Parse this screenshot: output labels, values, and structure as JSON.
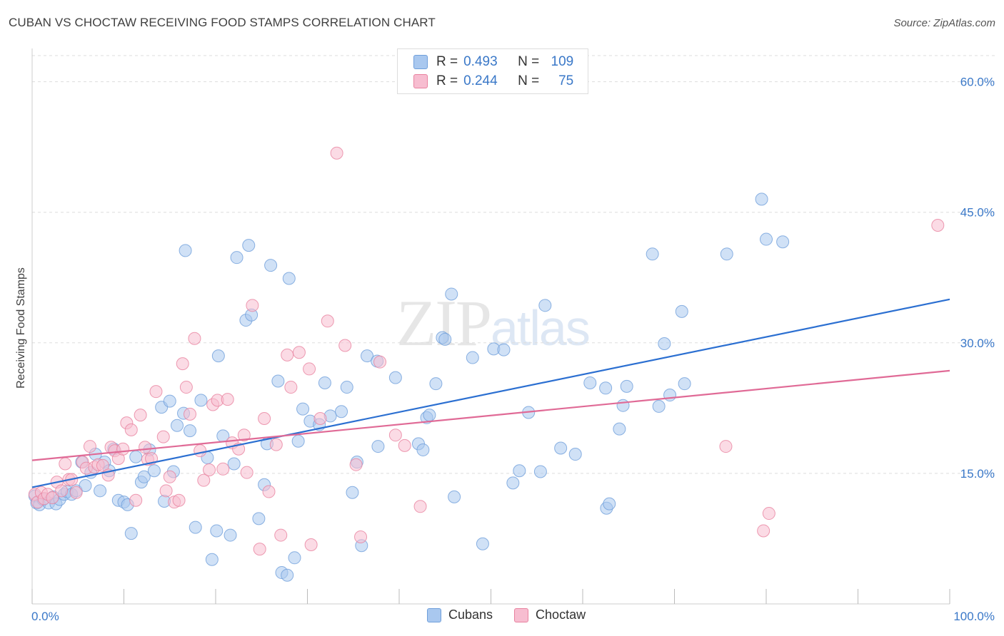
{
  "title": "CUBAN VS CHOCTAW RECEIVING FOOD STAMPS CORRELATION CHART",
  "source": "Source: ZipAtlas.com",
  "watermark": {
    "zip": "ZIP",
    "atlas": "atlas"
  },
  "legend": {
    "r_label": "R =",
    "n_label": "N =",
    "rows": [
      {
        "r": "0.493",
        "n": "109",
        "color": "#a9c8ef",
        "border": "#6f9fdb"
      },
      {
        "r": "0.244",
        "n": "75",
        "color": "#f7bdd0",
        "border": "#e8829f"
      }
    ]
  },
  "bottom_legend": [
    {
      "label": "Cubans",
      "color": "#a9c8ef",
      "border": "#6f9fdb"
    },
    {
      "label": "Choctaw",
      "color": "#f7bdd0",
      "border": "#e8829f"
    }
  ],
  "colors": {
    "cubans_fill": "#a9c8ef",
    "cubans_stroke": "#6f9fdb",
    "cubans_line": "#2b6fd1",
    "choctaw_fill": "#f7bdd0",
    "choctaw_stroke": "#e8829f",
    "choctaw_line": "#e06a96",
    "grid": "#dddddd",
    "tick_text": "#3a78c8"
  },
  "chart_data": {
    "type": "scatter",
    "title": "CUBAN VS CHOCTAW RECEIVING FOOD STAMPS CORRELATION CHART",
    "xlabel": "",
    "ylabel": "Receiving Food Stamps",
    "xlim": [
      0,
      100
    ],
    "ylim": [
      0,
      63
    ],
    "x_tick_labels": [
      "0.0%",
      "100.0%"
    ],
    "y_ticks": [
      15,
      30,
      45,
      60
    ],
    "y_tick_labels": [
      "15.0%",
      "30.0%",
      "45.0%",
      "60.0%"
    ],
    "grid": true,
    "legend_position": "top-center",
    "series": [
      {
        "name": "Cubans",
        "r": 0.493,
        "n": 109,
        "trend": {
          "x": [
            0,
            100
          ],
          "y": [
            13.4,
            35.0
          ]
        },
        "points": [
          [
            0.3,
            12.4
          ],
          [
            0.5,
            11.6
          ],
          [
            0.8,
            11.4
          ],
          [
            1.2,
            12.0
          ],
          [
            1.8,
            11.6
          ],
          [
            2.3,
            12.3
          ],
          [
            2.6,
            11.5
          ],
          [
            3.0,
            12.0
          ],
          [
            3.5,
            12.6
          ],
          [
            3.8,
            12.9
          ],
          [
            4.3,
            12.6
          ],
          [
            4.8,
            13.0
          ],
          [
            5.4,
            16.3
          ],
          [
            5.8,
            13.6
          ],
          [
            6.4,
            15.1
          ],
          [
            6.9,
            17.2
          ],
          [
            7.4,
            13.0
          ],
          [
            7.9,
            16.3
          ],
          [
            8.4,
            15.3
          ],
          [
            8.9,
            17.8
          ],
          [
            9.4,
            11.9
          ],
          [
            10.0,
            11.7
          ],
          [
            10.4,
            11.4
          ],
          [
            10.8,
            8.1
          ],
          [
            11.3,
            16.9
          ],
          [
            11.9,
            14.0
          ],
          [
            12.2,
            14.6
          ],
          [
            12.8,
            17.7
          ],
          [
            13.3,
            15.3
          ],
          [
            14.1,
            22.6
          ],
          [
            14.4,
            11.8
          ],
          [
            15.0,
            23.3
          ],
          [
            15.4,
            15.2
          ],
          [
            15.8,
            20.5
          ],
          [
            16.5,
            21.9
          ],
          [
            16.7,
            40.6
          ],
          [
            17.2,
            19.9
          ],
          [
            17.8,
            8.8
          ],
          [
            18.4,
            23.4
          ],
          [
            19.1,
            16.8
          ],
          [
            19.6,
            5.1
          ],
          [
            20.1,
            8.4
          ],
          [
            20.3,
            28.5
          ],
          [
            20.8,
            19.3
          ],
          [
            21.6,
            7.9
          ],
          [
            22.0,
            16.1
          ],
          [
            22.3,
            39.8
          ],
          [
            23.3,
            32.6
          ],
          [
            23.6,
            41.2
          ],
          [
            23.9,
            33.2
          ],
          [
            24.7,
            9.8
          ],
          [
            25.3,
            13.7
          ],
          [
            25.6,
            18.4
          ],
          [
            26.0,
            38.9
          ],
          [
            26.8,
            25.6
          ],
          [
            27.2,
            3.6
          ],
          [
            27.8,
            3.3
          ],
          [
            28.0,
            37.4
          ],
          [
            28.6,
            5.3
          ],
          [
            29.0,
            18.7
          ],
          [
            29.5,
            22.4
          ],
          [
            30.3,
            21.0
          ],
          [
            31.3,
            20.6
          ],
          [
            31.9,
            25.4
          ],
          [
            32.5,
            21.6
          ],
          [
            33.7,
            22.1
          ],
          [
            34.3,
            24.9
          ],
          [
            34.9,
            12.8
          ],
          [
            35.4,
            16.3
          ],
          [
            35.9,
            6.7
          ],
          [
            36.5,
            28.5
          ],
          [
            37.6,
            27.9
          ],
          [
            37.7,
            18.1
          ],
          [
            39.6,
            26.0
          ],
          [
            42.1,
            18.4
          ],
          [
            42.6,
            17.7
          ],
          [
            43.0,
            21.4
          ],
          [
            43.3,
            21.7
          ],
          [
            44.0,
            25.3
          ],
          [
            44.7,
            30.6
          ],
          [
            45.0,
            30.4
          ],
          [
            45.7,
            35.6
          ],
          [
            46.0,
            12.3
          ],
          [
            48.0,
            28.3
          ],
          [
            49.1,
            6.9
          ],
          [
            50.3,
            29.3
          ],
          [
            51.4,
            29.2
          ],
          [
            52.4,
            13.9
          ],
          [
            53.1,
            15.3
          ],
          [
            54.1,
            22.0
          ],
          [
            55.4,
            15.2
          ],
          [
            55.9,
            34.3
          ],
          [
            57.6,
            17.9
          ],
          [
            59.2,
            17.2
          ],
          [
            60.8,
            25.4
          ],
          [
            62.6,
            11.0
          ],
          [
            62.5,
            24.8
          ],
          [
            62.9,
            11.5
          ],
          [
            64.0,
            20.1
          ],
          [
            64.4,
            22.8
          ],
          [
            64.8,
            25.0
          ],
          [
            67.6,
            40.2
          ],
          [
            68.3,
            22.7
          ],
          [
            68.9,
            29.9
          ],
          [
            69.5,
            24.0
          ],
          [
            70.8,
            33.6
          ],
          [
            71.1,
            25.3
          ],
          [
            75.7,
            40.2
          ],
          [
            79.5,
            46.5
          ],
          [
            80.0,
            41.9
          ],
          [
            81.8,
            41.6
          ]
        ]
      },
      {
        "name": "Choctaw",
        "r": 0.244,
        "n": 75,
        "trend": {
          "x": [
            0,
            100
          ],
          "y": [
            16.5,
            26.8
          ]
        },
        "points": [
          [
            0.3,
            12.6
          ],
          [
            0.6,
            11.7
          ],
          [
            1.0,
            12.8
          ],
          [
            1.3,
            12.1
          ],
          [
            1.7,
            12.6
          ],
          [
            2.2,
            12.2
          ],
          [
            2.7,
            14.0
          ],
          [
            3.2,
            13.0
          ],
          [
            3.6,
            16.1
          ],
          [
            4.0,
            14.3
          ],
          [
            4.3,
            14.3
          ],
          [
            4.8,
            12.8
          ],
          [
            5.5,
            16.3
          ],
          [
            5.9,
            15.6
          ],
          [
            6.3,
            18.1
          ],
          [
            6.8,
            15.7
          ],
          [
            7.2,
            16.0
          ],
          [
            7.7,
            15.9
          ],
          [
            8.3,
            14.8
          ],
          [
            8.6,
            18.0
          ],
          [
            9.0,
            17.6
          ],
          [
            9.4,
            16.7
          ],
          [
            9.9,
            17.8
          ],
          [
            10.3,
            20.8
          ],
          [
            10.8,
            20.0
          ],
          [
            11.3,
            11.9
          ],
          [
            11.8,
            21.7
          ],
          [
            12.3,
            18.0
          ],
          [
            12.6,
            16.6
          ],
          [
            13.0,
            16.7
          ],
          [
            13.5,
            24.4
          ],
          [
            14.3,
            19.2
          ],
          [
            14.6,
            13.0
          ],
          [
            15.0,
            14.6
          ],
          [
            15.5,
            11.7
          ],
          [
            16.0,
            11.9
          ],
          [
            16.4,
            27.6
          ],
          [
            16.8,
            24.9
          ],
          [
            17.2,
            21.8
          ],
          [
            17.7,
            30.5
          ],
          [
            18.3,
            17.6
          ],
          [
            18.7,
            14.2
          ],
          [
            19.3,
            15.4
          ],
          [
            19.7,
            22.9
          ],
          [
            20.2,
            23.4
          ],
          [
            20.8,
            15.5
          ],
          [
            21.3,
            23.5
          ],
          [
            21.8,
            18.5
          ],
          [
            22.5,
            17.8
          ],
          [
            23.1,
            19.4
          ],
          [
            23.4,
            15.1
          ],
          [
            24.0,
            34.3
          ],
          [
            24.8,
            6.3
          ],
          [
            25.3,
            21.3
          ],
          [
            25.8,
            12.9
          ],
          [
            26.6,
            18.3
          ],
          [
            27.1,
            7.9
          ],
          [
            27.8,
            28.6
          ],
          [
            28.2,
            24.9
          ],
          [
            29.1,
            28.9
          ],
          [
            30.2,
            27.0
          ],
          [
            30.4,
            6.8
          ],
          [
            31.4,
            21.3
          ],
          [
            32.2,
            32.5
          ],
          [
            33.2,
            51.8
          ],
          [
            34.1,
            29.7
          ],
          [
            35.3,
            16.0
          ],
          [
            35.8,
            7.7
          ],
          [
            37.9,
            27.8
          ],
          [
            39.6,
            19.4
          ],
          [
            40.6,
            18.2
          ],
          [
            42.3,
            11.2
          ],
          [
            75.6,
            18.1
          ],
          [
            79.7,
            8.4
          ],
          [
            80.3,
            10.4
          ],
          [
            98.7,
            43.5
          ]
        ]
      }
    ]
  }
}
